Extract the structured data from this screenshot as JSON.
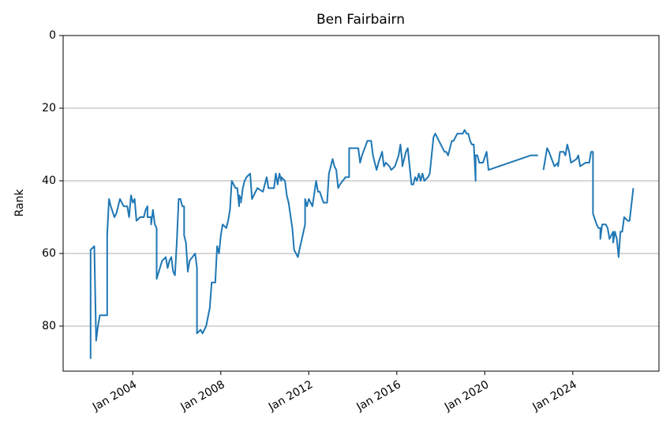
{
  "chart_data": {
    "type": "line",
    "title": "Ben Fairbairn",
    "y_label": "Rank",
    "xlim": [
      "2000-11",
      "2027-12"
    ],
    "xticks": [
      {
        "value": "2004-01",
        "label": "Jan 2004"
      },
      {
        "value": "2008-01",
        "label": "Jan 2008"
      },
      {
        "value": "2012-01",
        "label": "Jan 2012"
      },
      {
        "value": "2016-01",
        "label": "Jan 2016"
      },
      {
        "value": "2020-01",
        "label": "Jan 2020"
      },
      {
        "value": "2024-01",
        "label": "Jan 2024"
      }
    ],
    "ylim": [
      92.4,
      0
    ],
    "yticks": [
      0,
      20,
      40,
      60,
      80
    ],
    "grid": "y",
    "x": [
      "2002-02",
      "2002-02",
      "2002-04",
      "2002-05",
      "2002-06",
      "2002-07",
      "2002-11",
      "2002-11",
      "2002-12",
      "2003-01",
      "2003-03",
      "2003-04",
      "2003-06",
      "2003-08",
      "2003-10",
      "2003-11",
      "2003-12",
      "2004-01",
      "2004-02",
      "2004-03",
      "2004-05",
      "2004-07",
      "2004-08",
      "2004-09",
      "2004-09",
      "2004-11",
      "2004-11",
      "2004-12",
      "2005-01",
      "2005-02",
      "2005-02",
      "2005-05",
      "2005-07",
      "2005-08",
      "2005-09",
      "2005-10",
      "2005-11",
      "2005-12",
      "2006-01",
      "2006-02",
      "2006-03",
      "2006-04",
      "2006-05",
      "2006-05",
      "2006-06",
      "2006-07",
      "2006-08",
      "2006-11",
      "2006-12",
      "2006-12",
      "2006-12",
      "2007-02",
      "2007-03",
      "2007-05",
      "2007-07",
      "2007-08",
      "2007-10",
      "2007-11",
      "2007-12",
      "2008-01",
      "2008-02",
      "2008-04",
      "2008-05",
      "2008-06",
      "2008-07",
      "2008-09",
      "2008-10",
      "2008-11",
      "2008-11",
      "2008-12",
      "2008-12",
      "2009-01",
      "2009-02",
      "2009-03",
      "2009-05",
      "2009-06",
      "2009-09",
      "2009-12",
      "2010-02",
      "2010-03",
      "2010-06",
      "2010-07",
      "2010-08",
      "2010-09",
      "2010-10",
      "2010-10",
      "2010-12",
      "2011-01",
      "2011-02",
      "2011-04",
      "2011-05",
      "2011-07",
      "2011-11",
      "2011-11",
      "2011-12",
      "2012-01",
      "2012-03",
      "2012-05",
      "2012-06",
      "2012-07",
      "2012-09",
      "2012-11",
      "2012-12",
      "2013-02",
      "2013-03",
      "2013-04",
      "2013-05",
      "2013-06",
      "2013-09",
      "2013-11",
      "2013-11",
      "2014-02",
      "2014-04",
      "2014-05",
      "2014-06",
      "2014-09",
      "2014-11",
      "2014-12",
      "2015-02",
      "2015-03",
      "2015-05",
      "2015-06",
      "2015-07",
      "2015-09",
      "2015-10",
      "2015-12",
      "2016-02",
      "2016-03",
      "2016-04",
      "2016-04",
      "2016-06",
      "2016-07",
      "2016-09",
      "2016-10",
      "2016-11",
      "2016-12",
      "2017-01",
      "2017-02",
      "2017-03",
      "2017-04",
      "2017-06",
      "2017-07",
      "2017-09",
      "2017-10",
      "2017-12",
      "2018-02",
      "2018-03",
      "2018-04",
      "2018-05",
      "2018-07",
      "2018-08",
      "2018-09",
      "2018-10",
      "2018-12",
      "2019-01",
      "2019-02",
      "2019-03",
      "2019-04",
      "2019-05",
      "2019-06",
      "2019-07",
      "2019-08",
      "2019-08",
      "2019-09",
      "2019-10",
      "2019-12",
      "2020-02",
      "2020-03",
      "2022-02",
      "2022-06",
      "2022-08",
      "2022-09",
      "2022-11",
      "2022-12",
      "2023-03",
      "2023-05",
      "2023-05",
      "2023-06",
      "2023-08",
      "2023-09",
      "2023-10",
      "2023-11",
      "2023-12",
      "2024-03",
      "2024-04",
      "2024-05",
      "2024-08",
      "2024-10",
      "2024-11",
      "2024-12",
      "2024-12",
      "2025-02",
      "2025-03",
      "2025-04",
      "2025-04",
      "2025-05",
      "2025-07",
      "2025-08",
      "2025-09",
      "2025-11",
      "2025-11",
      "2025-12",
      "2026-01",
      "2026-02",
      "2026-03",
      "2026-04",
      "2026-05",
      "2026-07",
      "2026-08",
      "2026-10"
    ],
    "series": [
      {
        "name": "Rank",
        "color": "#1f77b4",
        "values": [
          89,
          59,
          58,
          84,
          80,
          77,
          77,
          55,
          45,
          47,
          50,
          49,
          45,
          47,
          47,
          50,
          44,
          46,
          45,
          51,
          50,
          50,
          48,
          47,
          50,
          50,
          52,
          48,
          52,
          53,
          67,
          62,
          61,
          64,
          62,
          61,
          65,
          66,
          57,
          45,
          45,
          47,
          47,
          55,
          57,
          65,
          62,
          60,
          64,
          66,
          82,
          81,
          82,
          80,
          75,
          68,
          68,
          58,
          60,
          55,
          52,
          53,
          51,
          48,
          40,
          42,
          42,
          47,
          44,
          45,
          46,
          42,
          40,
          39,
          38,
          45,
          42,
          43,
          39,
          42,
          42,
          38,
          41,
          38,
          40,
          39,
          40,
          44,
          46,
          53,
          59,
          61,
          52,
          45,
          47,
          45,
          47,
          40,
          43,
          43,
          46,
          46,
          38,
          34,
          36,
          37,
          42,
          41,
          39,
          39,
          31,
          31,
          31,
          35,
          33,
          29,
          29,
          33,
          37,
          35,
          32,
          36,
          35,
          36,
          37,
          36,
          33,
          30,
          35,
          36,
          32,
          31,
          41,
          41,
          39,
          40,
          38,
          40,
          38,
          40,
          39,
          38,
          28,
          27,
          29,
          31,
          32,
          32,
          33,
          29,
          29,
          28,
          27,
          27,
          27,
          26,
          27,
          27,
          29,
          30,
          30,
          40,
          33,
          33,
          35,
          35,
          32,
          37,
          33,
          33,
          null,
          37,
          31,
          32,
          36,
          35,
          36,
          32,
          32,
          33,
          30,
          32,
          35,
          34,
          33,
          36,
          35,
          35,
          32,
          32,
          49,
          52,
          53,
          53,
          56,
          52,
          52,
          53,
          56,
          54,
          57,
          54,
          56,
          61,
          54,
          54,
          50,
          51,
          51,
          42
        ]
      }
    ]
  }
}
